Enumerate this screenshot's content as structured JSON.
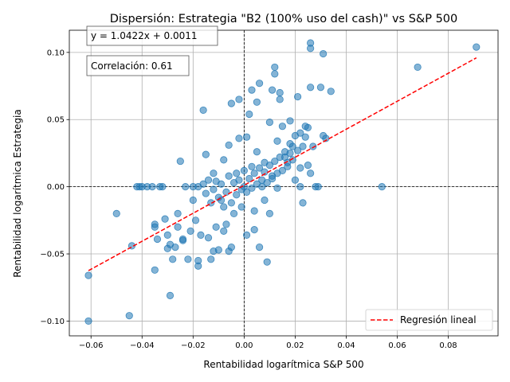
{
  "chart_data": {
    "type": "scatter",
    "title": "Dispersión: Estrategia \"B2 (100% uso del cash)\" vs S&P 500",
    "xlabel": "Rentabilidad logarítmica S&P 500",
    "ylabel": "Rentabilidad logarítmica Estrategia",
    "xlim": [
      -0.0685,
      0.0995
    ],
    "ylim": [
      -0.111,
      0.1165
    ],
    "xticks": [
      -0.06,
      -0.04,
      -0.02,
      0.0,
      0.02,
      0.04,
      0.06,
      0.08
    ],
    "xtick_labels": [
      "−0.06",
      "−0.04",
      "−0.02",
      "0.00",
      "0.02",
      "0.04",
      "0.06",
      "0.08"
    ],
    "yticks": [
      -0.1,
      -0.05,
      0.0,
      0.05,
      0.1
    ],
    "ytick_labels": [
      "−0.10",
      "−0.05",
      "0.00",
      "0.05",
      "0.10"
    ],
    "grid": true,
    "annotations": [
      "y = 1.0422x + 0.0011",
      "Correlación: 0.61"
    ],
    "regression": {
      "slope": 1.0422,
      "intercept": 0.0011,
      "x_range": [
        -0.061,
        0.091
      ],
      "color": "#ff0000",
      "legend": "Regresión lineal"
    },
    "legend_position": "bottom-right",
    "point_color": "#1f77b4",
    "points": [
      [
        -0.061,
        -0.066
      ],
      [
        -0.061,
        -0.1
      ],
      [
        -0.05,
        -0.02
      ],
      [
        -0.045,
        -0.096
      ],
      [
        -0.044,
        -0.044
      ],
      [
        -0.042,
        0.0
      ],
      [
        -0.041,
        0.0
      ],
      [
        -0.04,
        0.0
      ],
      [
        -0.038,
        0.0
      ],
      [
        -0.036,
        0.0
      ],
      [
        -0.035,
        -0.03
      ],
      [
        -0.035,
        -0.028
      ],
      [
        -0.035,
        -0.062
      ],
      [
        -0.034,
        -0.039
      ],
      [
        -0.033,
        0.0
      ],
      [
        -0.032,
        0.0
      ],
      [
        -0.031,
        -0.024
      ],
      [
        -0.03,
        -0.046
      ],
      [
        -0.03,
        -0.036
      ],
      [
        -0.029,
        -0.081
      ],
      [
        -0.029,
        -0.043
      ],
      [
        -0.028,
        -0.054
      ],
      [
        -0.027,
        -0.045
      ],
      [
        -0.026,
        -0.03
      ],
      [
        -0.026,
        -0.02
      ],
      [
        -0.025,
        0.019
      ],
      [
        -0.024,
        -0.04
      ],
      [
        -0.024,
        -0.039
      ],
      [
        -0.023,
        0.0
      ],
      [
        -0.022,
        -0.054
      ],
      [
        -0.021,
        -0.033
      ],
      [
        -0.02,
        -0.01
      ],
      [
        -0.019,
        -0.025
      ],
      [
        -0.018,
        -0.059
      ],
      [
        -0.018,
        -0.055
      ],
      [
        -0.017,
        -0.036
      ],
      [
        -0.016,
        0.057
      ],
      [
        -0.015,
        0.024
      ],
      [
        -0.014,
        -0.038
      ],
      [
        -0.013,
        -0.054
      ],
      [
        -0.012,
        -0.048
      ],
      [
        -0.012,
        0.01
      ],
      [
        -0.011,
        -0.03
      ],
      [
        -0.01,
        -0.047
      ],
      [
        -0.009,
        -0.01
      ],
      [
        -0.008,
        0.02
      ],
      [
        -0.008,
        -0.033
      ],
      [
        -0.007,
        -0.028
      ],
      [
        -0.006,
        0.031
      ],
      [
        -0.006,
        -0.048
      ],
      [
        -0.005,
        0.062
      ],
      [
        -0.005,
        -0.045
      ],
      [
        -0.004,
        -0.02
      ],
      [
        -0.003,
        0.01
      ],
      [
        -0.002,
        0.036
      ],
      [
        -0.002,
        0.065
      ],
      [
        -0.001,
        -0.015
      ],
      [
        0.0,
        0.0
      ],
      [
        0.001,
        0.037
      ],
      [
        0.001,
        -0.036
      ],
      [
        0.002,
        0.054
      ],
      [
        0.003,
        0.072
      ],
      [
        0.003,
        0.015
      ],
      [
        0.004,
        -0.018
      ],
      [
        0.004,
        -0.032
      ],
      [
        0.005,
        0.063
      ],
      [
        0.005,
        0.026
      ],
      [
        0.006,
        0.077
      ],
      [
        0.006,
        -0.045
      ],
      [
        0.007,
        0.0
      ],
      [
        0.008,
        0.018
      ],
      [
        0.008,
        -0.01
      ],
      [
        0.009,
        -0.056
      ],
      [
        0.01,
        0.048
      ],
      [
        0.01,
        -0.02
      ],
      [
        0.011,
        0.008
      ],
      [
        0.011,
        0.072
      ],
      [
        0.012,
        0.089
      ],
      [
        0.012,
        0.084
      ],
      [
        0.013,
        0.034
      ],
      [
        0.013,
        -0.001
      ],
      [
        0.014,
        0.065
      ],
      [
        0.014,
        0.07
      ],
      [
        0.015,
        0.045
      ],
      [
        0.016,
        0.022
      ],
      [
        0.017,
        0.015
      ],
      [
        0.018,
        0.025
      ],
      [
        0.018,
        0.049
      ],
      [
        0.019,
        0.03
      ],
      [
        0.02,
        0.005
      ],
      [
        0.021,
        0.067
      ],
      [
        0.022,
        0.014
      ],
      [
        0.022,
        0.0
      ],
      [
        0.023,
        -0.012
      ],
      [
        0.024,
        0.037
      ],
      [
        0.025,
        0.044
      ],
      [
        0.026,
        0.103
      ],
      [
        0.026,
        0.107
      ],
      [
        0.026,
        0.074
      ],
      [
        0.027,
        0.03
      ],
      [
        0.028,
        0.0
      ],
      [
        0.029,
        0.0
      ],
      [
        0.03,
        0.074
      ],
      [
        0.031,
        0.099
      ],
      [
        0.031,
        0.038
      ],
      [
        0.032,
        0.036
      ],
      [
        0.034,
        0.071
      ],
      [
        0.054,
        0.0
      ],
      [
        0.068,
        0.089
      ],
      [
        0.091,
        0.104
      ],
      [
        -0.02,
        0.0
      ],
      [
        -0.018,
        0.0
      ],
      [
        -0.016,
        0.002
      ],
      [
        -0.015,
        -0.005
      ],
      [
        -0.014,
        0.005
      ],
      [
        -0.013,
        -0.012
      ],
      [
        -0.012,
        -0.002
      ],
      [
        -0.011,
        0.004
      ],
      [
        -0.01,
        -0.008
      ],
      [
        -0.009,
        0.002
      ],
      [
        -0.008,
        -0.015
      ],
      [
        -0.007,
        -0.004
      ],
      [
        -0.006,
        0.008
      ],
      [
        -0.005,
        -0.012
      ],
      [
        -0.004,
        0.003
      ],
      [
        -0.003,
        -0.006
      ],
      [
        -0.002,
        0.005
      ],
      [
        -0.001,
        -0.002
      ],
      [
        0.0,
        0.012
      ],
      [
        0.001,
        -0.004
      ],
      [
        0.002,
        0.006
      ],
      [
        0.003,
        -0.001
      ],
      [
        0.004,
        0.01
      ],
      [
        0.005,
        0.002
      ],
      [
        0.006,
        0.014
      ],
      [
        0.007,
        0.005
      ],
      [
        0.008,
        0.011
      ],
      [
        0.009,
        0.003
      ],
      [
        0.01,
        0.016
      ],
      [
        0.011,
        0.006
      ],
      [
        0.012,
        0.019
      ],
      [
        0.013,
        0.01
      ],
      [
        0.014,
        0.022
      ],
      [
        0.015,
        0.012
      ],
      [
        0.016,
        0.026
      ],
      [
        0.017,
        0.018
      ],
      [
        0.018,
        0.032
      ],
      [
        0.019,
        0.02
      ],
      [
        0.02,
        0.038
      ],
      [
        0.021,
        0.027
      ],
      [
        0.022,
        0.04
      ],
      [
        0.023,
        0.03
      ],
      [
        0.024,
        0.045
      ],
      [
        0.025,
        0.016
      ],
      [
        0.026,
        0.01
      ]
    ]
  }
}
